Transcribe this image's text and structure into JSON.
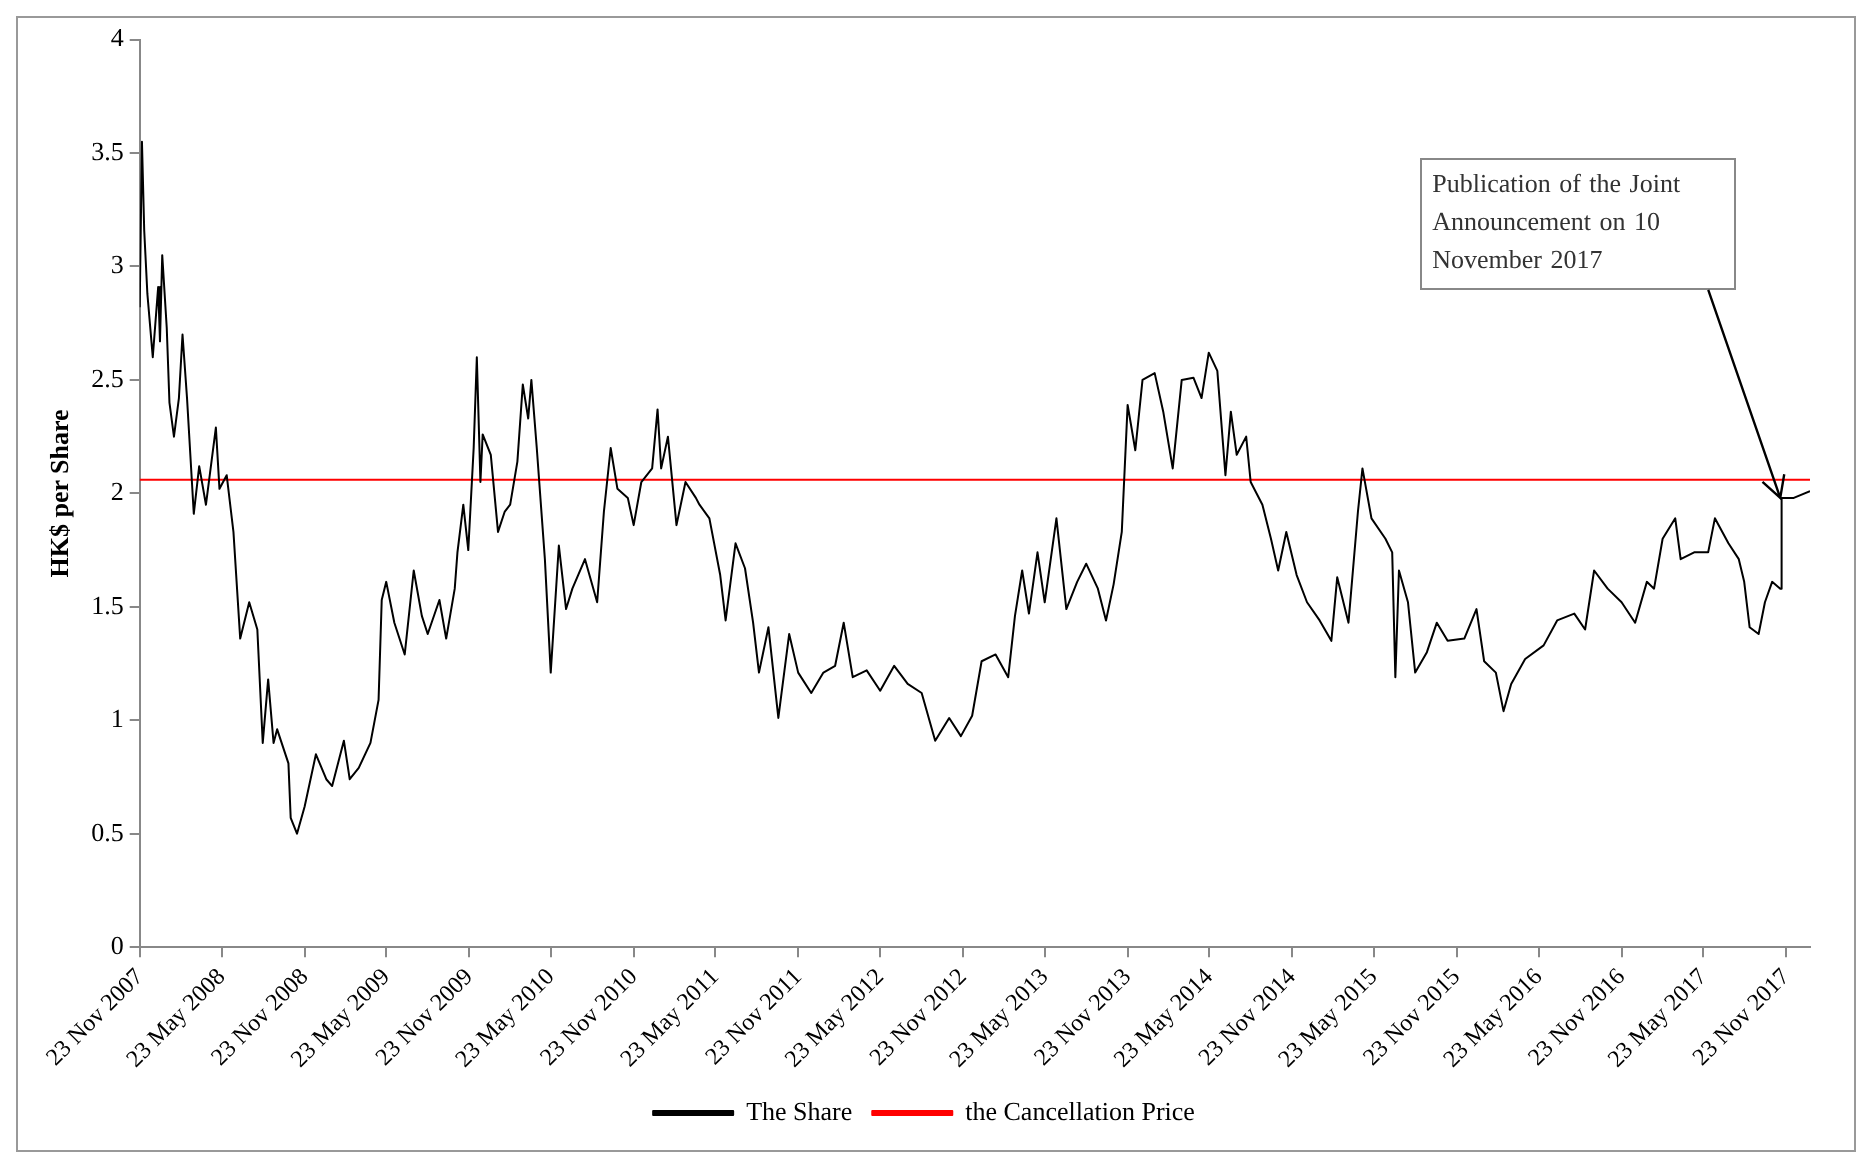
{
  "chart_data": {
    "type": "line",
    "ylabel": "HK$ per Share",
    "xlim": [
      "2007-11-23",
      "2018-01-15"
    ],
    "ylim": [
      0,
      4
    ],
    "yticks": [
      0,
      0.5,
      1,
      1.5,
      2,
      2.5,
      3,
      3.5,
      4
    ],
    "xticks": [
      {
        "value": "2007-11-23",
        "label": "23 Nov 2007"
      },
      {
        "value": "2008-05-23",
        "label": "23 May 2008"
      },
      {
        "value": "2008-11-23",
        "label": "23 Nov 2008"
      },
      {
        "value": "2009-05-23",
        "label": "23 May 2009"
      },
      {
        "value": "2009-11-23",
        "label": "23 Nov 2009"
      },
      {
        "value": "2010-05-23",
        "label": "23 May 2010"
      },
      {
        "value": "2010-11-23",
        "label": "23 Nov 2010"
      },
      {
        "value": "2011-05-23",
        "label": "23 May 2011"
      },
      {
        "value": "2011-11-23",
        "label": "23 Nov 2011"
      },
      {
        "value": "2012-05-23",
        "label": "23 May 2012"
      },
      {
        "value": "2012-11-23",
        "label": "23 Nov 2012"
      },
      {
        "value": "2013-05-23",
        "label": "23 May 2013"
      },
      {
        "value": "2013-11-23",
        "label": "23 Nov 2013"
      },
      {
        "value": "2014-05-23",
        "label": "23 May 2014"
      },
      {
        "value": "2014-11-23",
        "label": "23 Nov 2014"
      },
      {
        "value": "2015-05-23",
        "label": "23 May 2015"
      },
      {
        "value": "2015-11-23",
        "label": "23 Nov 2015"
      },
      {
        "value": "2016-05-23",
        "label": "23 May 2016"
      },
      {
        "value": "2016-11-23",
        "label": "23 Nov 2016"
      },
      {
        "value": "2017-05-23",
        "label": "23 May 2017"
      },
      {
        "value": "2017-11-23",
        "label": "23 Nov 2017"
      }
    ],
    "grid": false,
    "legend": "bottom",
    "marker": "none",
    "line_style": "solid",
    "annotations": [
      {
        "text": "Publication of the Joint Announcement on 10 November 2017",
        "x": "2017-11-10",
        "y": 1.98
      }
    ],
    "series": [
      {
        "name": "The Share",
        "color": "#000000",
        "x": [
          "2007-11-23",
          "2007-11-28",
          "2007-12-03",
          "2007-12-10",
          "2007-12-22",
          "2008-01-03",
          "2008-01-07",
          "2008-01-12",
          "2008-01-22",
          "2008-01-28",
          "2008-02-07",
          "2008-02-18",
          "2008-02-26",
          "2008-03-07",
          "2008-03-22",
          "2008-04-03",
          "2008-04-18",
          "2008-05-10",
          "2008-05-18",
          "2008-06-03",
          "2008-06-18",
          "2008-07-03",
          "2008-07-23",
          "2008-08-10",
          "2008-08-22",
          "2008-09-03",
          "2008-09-15",
          "2008-09-23",
          "2008-10-18",
          "2008-10-23",
          "2008-11-06",
          "2008-11-23",
          "2008-12-18",
          "2009-01-10",
          "2009-01-23",
          "2009-02-18",
          "2009-03-03",
          "2009-03-23",
          "2009-04-18",
          "2009-05-06",
          "2009-05-13",
          "2009-05-23",
          "2009-06-10",
          "2009-07-03",
          "2009-07-23",
          "2009-08-10",
          "2009-08-23",
          "2009-09-18",
          "2009-10-03",
          "2009-10-22",
          "2009-10-28",
          "2009-11-10",
          "2009-11-21",
          "2009-12-03",
          "2009-12-10",
          "2009-12-18",
          "2009-12-23",
          "2010-01-10",
          "2010-01-26",
          "2010-02-10",
          "2010-02-22",
          "2010-03-10",
          "2010-03-22",
          "2010-04-03",
          "2010-04-10",
          "2010-04-22",
          "2010-05-10",
          "2010-05-23",
          "2010-06-10",
          "2010-06-26",
          "2010-07-10",
          "2010-08-07",
          "2010-09-03",
          "2010-09-18",
          "2010-10-03",
          "2010-10-18",
          "2010-11-10",
          "2010-11-23",
          "2010-12-10",
          "2011-01-03",
          "2011-01-15",
          "2011-01-23",
          "2011-02-07",
          "2011-02-26",
          "2011-03-18",
          "2011-04-10",
          "2011-04-18",
          "2011-05-10",
          "2011-06-03",
          "2011-06-15",
          "2011-07-07",
          "2011-07-28",
          "2011-08-15",
          "2011-08-28",
          "2011-09-18",
          "2011-10-10",
          "2011-11-03",
          "2011-11-23",
          "2011-12-22",
          "2012-01-18",
          "2012-02-13",
          "2012-03-03",
          "2012-03-23",
          "2012-04-23",
          "2012-05-23",
          "2012-06-23",
          "2012-07-23",
          "2012-08-23",
          "2012-09-22",
          "2012-10-23",
          "2012-11-18",
          "2012-12-13",
          "2013-01-03",
          "2013-02-03",
          "2013-03-03",
          "2013-03-18",
          "2013-04-03",
          "2013-04-18",
          "2013-05-07",
          "2013-05-23",
          "2013-06-18",
          "2013-07-10",
          "2013-08-03",
          "2013-08-23",
          "2013-09-18",
          "2013-10-06",
          "2013-10-23",
          "2013-11-10",
          "2013-11-23",
          "2013-12-10",
          "2013-12-26",
          "2014-01-22",
          "2014-02-10",
          "2014-03-03",
          "2014-03-23",
          "2014-04-18",
          "2014-05-06",
          "2014-05-22",
          "2014-06-10",
          "2014-06-28",
          "2014-07-10",
          "2014-07-23",
          "2014-08-13",
          "2014-08-23",
          "2014-09-18",
          "2014-10-07",
          "2014-10-23",
          "2014-11-10",
          "2014-12-03",
          "2014-12-26",
          "2015-01-23",
          "2015-02-18",
          "2015-03-03",
          "2015-03-28",
          "2015-04-18",
          "2015-04-28",
          "2015-05-18",
          "2015-06-18",
          "2015-07-03",
          "2015-07-10",
          "2015-07-18",
          "2015-08-07",
          "2015-08-23",
          "2015-09-18",
          "2015-10-10",
          "2015-11-03",
          "2015-12-10",
          "2016-01-06",
          "2016-01-23",
          "2016-02-18",
          "2016-03-06",
          "2016-03-23",
          "2016-04-23",
          "2016-06-03",
          "2016-07-03",
          "2016-08-10",
          "2016-09-03",
          "2016-09-23",
          "2016-10-23",
          "2016-11-23",
          "2016-12-23",
          "2017-01-18",
          "2017-02-03",
          "2017-02-22",
          "2017-03-22",
          "2017-04-03",
          "2017-05-03",
          "2017-06-03",
          "2017-06-18",
          "2017-07-18",
          "2017-08-10",
          "2017-08-22",
          "2017-09-03",
          "2017-09-23",
          "2017-10-07",
          "2017-10-23",
          "2017-11-10",
          "2017-11-13",
          "2017-12-10",
          "2018-01-15"
        ],
        "values": [
          2.82,
          3.55,
          3.16,
          2.88,
          2.6,
          2.91,
          2.67,
          3.05,
          2.73,
          2.4,
          2.25,
          2.42,
          2.7,
          2.42,
          1.91,
          2.12,
          1.95,
          2.29,
          2.02,
          2.08,
          1.83,
          1.36,
          1.52,
          1.4,
          0.9,
          1.18,
          0.9,
          0.96,
          0.81,
          0.57,
          0.5,
          0.62,
          0.85,
          0.74,
          0.71,
          0.91,
          0.74,
          0.79,
          0.9,
          1.09,
          1.53,
          1.61,
          1.43,
          1.29,
          1.66,
          1.46,
          1.38,
          1.53,
          1.36,
          1.58,
          1.74,
          1.95,
          1.75,
          2.2,
          2.6,
          2.05,
          2.26,
          2.17,
          1.83,
          1.92,
          1.95,
          2.14,
          2.48,
          2.33,
          2.5,
          2.2,
          1.71,
          1.21,
          1.77,
          1.49,
          1.58,
          1.71,
          1.52,
          1.92,
          2.2,
          2.02,
          1.98,
          1.86,
          2.05,
          2.11,
          2.37,
          2.11,
          2.25,
          1.86,
          2.05,
          1.98,
          1.95,
          1.89,
          1.64,
          1.44,
          1.78,
          1.67,
          1.43,
          1.21,
          1.41,
          1.01,
          1.38,
          1.21,
          1.12,
          1.21,
          1.24,
          1.43,
          1.19,
          1.22,
          1.13,
          1.24,
          1.16,
          1.12,
          0.91,
          1.01,
          0.93,
          1.02,
          1.26,
          1.29,
          1.19,
          1.46,
          1.66,
          1.47,
          1.74,
          1.52,
          1.89,
          1.49,
          1.61,
          1.69,
          1.58,
          1.44,
          1.6,
          1.83,
          2.39,
          2.19,
          2.5,
          2.53,
          2.36,
          2.11,
          2.5,
          2.51,
          2.42,
          2.62,
          2.54,
          2.08,
          2.36,
          2.17,
          2.25,
          2.05,
          1.95,
          1.8,
          1.66,
          1.83,
          1.64,
          1.52,
          1.44,
          1.35,
          1.63,
          1.43,
          1.92,
          2.11,
          1.89,
          1.8,
          1.74,
          1.19,
          1.66,
          1.52,
          1.21,
          1.3,
          1.43,
          1.35,
          1.36,
          1.49,
          1.26,
          1.21,
          1.04,
          1.16,
          1.27,
          1.33,
          1.44,
          1.47,
          1.4,
          1.66,
          1.58,
          1.52,
          1.43,
          1.61,
          1.58,
          1.8,
          1.89,
          1.71,
          1.74,
          1.74,
          1.89,
          1.78,
          1.71,
          1.61,
          1.41,
          1.38,
          1.52,
          1.61,
          1.58,
          1.98,
          1.98,
          2.01
        ]
      },
      {
        "name": "the Cancellation Price",
        "color": "#ff0000",
        "x": [
          "2007-11-23",
          "2018-01-15"
        ],
        "values": [
          2.06,
          2.06
        ]
      }
    ]
  }
}
